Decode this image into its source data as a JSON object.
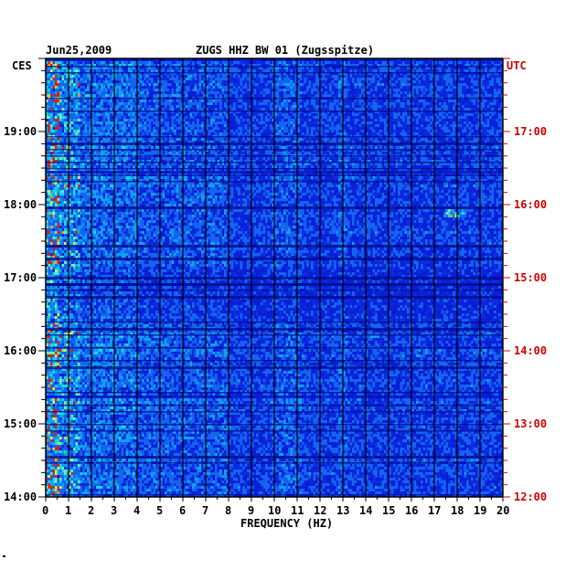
{
  "chart_data": {
    "type": "heatmap",
    "date": "Jun25,2009",
    "title": "ZUGS HHZ BW 01 (Zugsspitze)",
    "xlabel": "FREQUENCY (HZ)",
    "left_tz": "CES",
    "right_tz": "UTC",
    "x_ticks": [
      "0",
      "1",
      "2",
      "3",
      "4",
      "5",
      "6",
      "7",
      "8",
      "9",
      "10",
      "11",
      "12",
      "13",
      "14",
      "15",
      "16",
      "17",
      "18",
      "19",
      "20"
    ],
    "xlim": [
      0,
      20
    ],
    "left_time_ticks": [
      "19:00",
      "18:00",
      "17:00",
      "16:00",
      "15:00",
      "14:00"
    ],
    "right_time_ticks": [
      "17:00",
      "16:00",
      "15:00",
      "14:00",
      "13:00",
      "12:00"
    ],
    "time_range_cest": [
      "14:00",
      "20:00"
    ],
    "colors": {
      "background_level": "#0a1ed8",
      "frame": "#000000",
      "left_labels": "#000000",
      "right_labels": "#cc0000"
    },
    "features": [
      {
        "description": "high energy at 0-1 Hz throughout",
        "freq_hz": [
          0,
          1
        ]
      },
      {
        "description": "band near 10 Hz",
        "freq_hz": [
          10,
          11
        ]
      },
      {
        "description": "band near 13 Hz",
        "freq_hz": [
          12.8,
          13.1
        ]
      },
      {
        "description": "band near 17-18 Hz around 16:00",
        "freq_hz": [
          17.3,
          18.4
        ]
      }
    ]
  }
}
